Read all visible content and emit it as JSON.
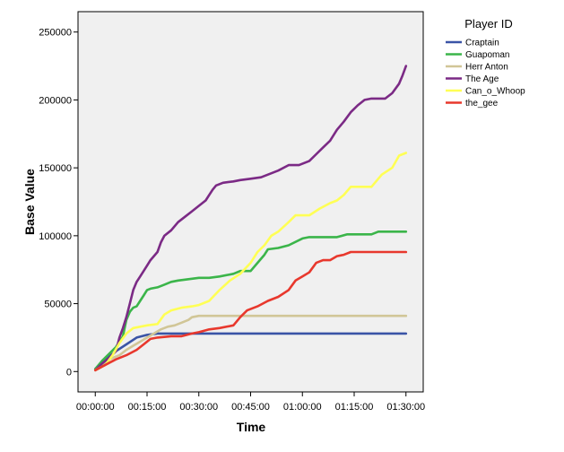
{
  "chart_data": {
    "type": "line",
    "title": "",
    "xlabel": "Time",
    "ylabel": "Base Value",
    "x_ticks": [
      "00:00:00",
      "00:15:00",
      "00:30:00",
      "00:45:00",
      "01:00:00",
      "01:15:00",
      "01:30:00"
    ],
    "y_ticks": [
      "0",
      "50000",
      "100000",
      "150000",
      "200000",
      "250000"
    ],
    "xlim": [
      -5,
      95
    ],
    "ylim": [
      -15000,
      265000
    ],
    "grid": false,
    "legend_title": "Player ID",
    "legend_position": "right",
    "x_unit": "minutes",
    "series": [
      {
        "name": "Craptain",
        "color": "#3a54a6",
        "points": [
          [
            0,
            2000
          ],
          [
            3,
            9000
          ],
          [
            6,
            15000
          ],
          [
            9,
            20000
          ],
          [
            12,
            25000
          ],
          [
            15,
            27000
          ],
          [
            18,
            28000
          ],
          [
            30,
            28000
          ],
          [
            60,
            28000
          ],
          [
            90,
            28000
          ]
        ]
      },
      {
        "name": "Guapoman",
        "color": "#3bb54a",
        "points": [
          [
            0,
            2000
          ],
          [
            2,
            8000
          ],
          [
            4,
            13000
          ],
          [
            6,
            18000
          ],
          [
            8,
            26000
          ],
          [
            9,
            38000
          ],
          [
            10,
            44000
          ],
          [
            11,
            47000
          ],
          [
            12,
            48000
          ],
          [
            13,
            52000
          ],
          [
            14,
            56000
          ],
          [
            15,
            60000
          ],
          [
            16,
            61000
          ],
          [
            18,
            62000
          ],
          [
            20,
            64000
          ],
          [
            22,
            66000
          ],
          [
            24,
            67000
          ],
          [
            27,
            68000
          ],
          [
            30,
            69000
          ],
          [
            33,
            69000
          ],
          [
            36,
            70000
          ],
          [
            40,
            72000
          ],
          [
            42,
            74000
          ],
          [
            45,
            74000
          ],
          [
            47,
            80000
          ],
          [
            49,
            86000
          ],
          [
            50,
            90000
          ],
          [
            53,
            91000
          ],
          [
            56,
            93000
          ],
          [
            60,
            98000
          ],
          [
            62,
            99000
          ],
          [
            66,
            99000
          ],
          [
            70,
            99000
          ],
          [
            73,
            101000
          ],
          [
            80,
            101000
          ],
          [
            82,
            103000
          ],
          [
            90,
            103000
          ]
        ]
      },
      {
        "name": "Herr Anton",
        "color": "#d1c697",
        "points": [
          [
            0,
            1000
          ],
          [
            2,
            5000
          ],
          [
            4,
            9000
          ],
          [
            7,
            12000
          ],
          [
            9,
            16000
          ],
          [
            11,
            19000
          ],
          [
            13,
            22000
          ],
          [
            15,
            25000
          ],
          [
            17,
            28000
          ],
          [
            19,
            31000
          ],
          [
            21,
            33000
          ],
          [
            23,
            34000
          ],
          [
            25,
            36000
          ],
          [
            27,
            38000
          ],
          [
            28,
            40000
          ],
          [
            30,
            41000
          ],
          [
            45,
            41000
          ],
          [
            60,
            41000
          ],
          [
            90,
            41000
          ]
        ]
      },
      {
        "name": "The Age",
        "color": "#7b2a85",
        "points": [
          [
            0,
            1000
          ],
          [
            2,
            6000
          ],
          [
            4,
            10000
          ],
          [
            6,
            15000
          ],
          [
            7,
            25000
          ],
          [
            8,
            32000
          ],
          [
            9,
            40000
          ],
          [
            10,
            50000
          ],
          [
            11,
            60000
          ],
          [
            12,
            66000
          ],
          [
            13,
            70000
          ],
          [
            14,
            74000
          ],
          [
            15,
            78000
          ],
          [
            16,
            82000
          ],
          [
            18,
            88000
          ],
          [
            19,
            95000
          ],
          [
            20,
            100000
          ],
          [
            22,
            104000
          ],
          [
            24,
            110000
          ],
          [
            26,
            114000
          ],
          [
            28,
            118000
          ],
          [
            30,
            122000
          ],
          [
            32,
            126000
          ],
          [
            33,
            130000
          ],
          [
            34,
            134000
          ],
          [
            35,
            137000
          ],
          [
            37,
            139000
          ],
          [
            40,
            140000
          ],
          [
            42,
            141000
          ],
          [
            45,
            142000
          ],
          [
            48,
            143000
          ],
          [
            50,
            145000
          ],
          [
            53,
            148000
          ],
          [
            56,
            152000
          ],
          [
            59,
            152000
          ],
          [
            62,
            155000
          ],
          [
            64,
            160000
          ],
          [
            66,
            165000
          ],
          [
            68,
            170000
          ],
          [
            70,
            178000
          ],
          [
            72,
            184000
          ],
          [
            74,
            191000
          ],
          [
            76,
            196000
          ],
          [
            78,
            200000
          ],
          [
            80,
            201000
          ],
          [
            84,
            201000
          ],
          [
            86,
            205000
          ],
          [
            88,
            212000
          ],
          [
            89,
            218000
          ],
          [
            90,
            225000
          ]
        ]
      },
      {
        "name": "Can_o_Whoop",
        "color": "#ffff55",
        "points": [
          [
            0,
            1000
          ],
          [
            3,
            5000
          ],
          [
            5,
            12000
          ],
          [
            7,
            21000
          ],
          [
            9,
            28000
          ],
          [
            11,
            32000
          ],
          [
            13,
            33000
          ],
          [
            15,
            34000
          ],
          [
            18,
            35000
          ],
          [
            20,
            42000
          ],
          [
            22,
            45000
          ],
          [
            25,
            47000
          ],
          [
            28,
            48000
          ],
          [
            30,
            49000
          ],
          [
            33,
            52000
          ],
          [
            36,
            60000
          ],
          [
            39,
            67000
          ],
          [
            42,
            72000
          ],
          [
            45,
            80000
          ],
          [
            47,
            88000
          ],
          [
            49,
            93000
          ],
          [
            51,
            100000
          ],
          [
            53,
            103000
          ],
          [
            56,
            110000
          ],
          [
            58,
            115000
          ],
          [
            62,
            115000
          ],
          [
            65,
            120000
          ],
          [
            68,
            124000
          ],
          [
            70,
            126000
          ],
          [
            72,
            130000
          ],
          [
            74,
            136000
          ],
          [
            77,
            136000
          ],
          [
            80,
            136000
          ],
          [
            83,
            145000
          ],
          [
            86,
            150000
          ],
          [
            88,
            159000
          ],
          [
            90,
            161000
          ]
        ]
      },
      {
        "name": "the_gee",
        "color": "#e8382d",
        "points": [
          [
            0,
            1000
          ],
          [
            3,
            5000
          ],
          [
            6,
            9000
          ],
          [
            9,
            12000
          ],
          [
            12,
            16000
          ],
          [
            14,
            20000
          ],
          [
            16,
            24000
          ],
          [
            18,
            25000
          ],
          [
            22,
            26000
          ],
          [
            25,
            26000
          ],
          [
            28,
            28000
          ],
          [
            30,
            29000
          ],
          [
            33,
            31000
          ],
          [
            36,
            32000
          ],
          [
            40,
            34000
          ],
          [
            42,
            40000
          ],
          [
            44,
            45000
          ],
          [
            47,
            48000
          ],
          [
            50,
            52000
          ],
          [
            53,
            55000
          ],
          [
            56,
            60000
          ],
          [
            58,
            67000
          ],
          [
            60,
            70000
          ],
          [
            62,
            73000
          ],
          [
            64,
            80000
          ],
          [
            66,
            82000
          ],
          [
            68,
            82000
          ],
          [
            70,
            85000
          ],
          [
            72,
            86000
          ],
          [
            74,
            88000
          ],
          [
            80,
            88000
          ],
          [
            90,
            88000
          ]
        ]
      }
    ]
  }
}
